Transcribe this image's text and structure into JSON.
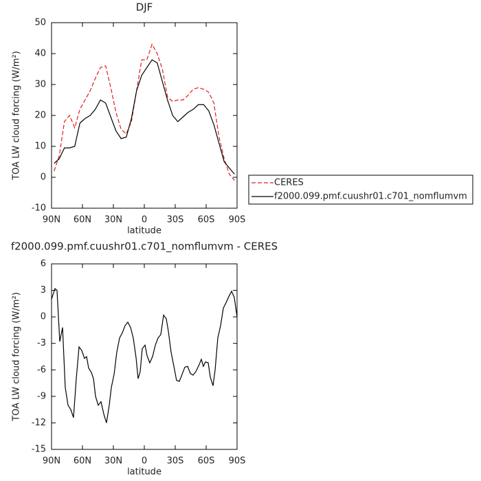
{
  "chart_data": [
    {
      "type": "line",
      "title": "DJF",
      "xlabel": "latitude",
      "ylabel": "TOA LW cloud forcing (W/m²)",
      "x": [
        87.5,
        82.5,
        77.5,
        72.5,
        67.5,
        62.5,
        57.5,
        52.5,
        47.5,
        42.5,
        37.5,
        32.5,
        27.5,
        22.5,
        17.5,
        12.5,
        7.5,
        2.5,
        -2.5,
        -7.5,
        -12.5,
        -17.5,
        -22.5,
        -27.5,
        -32.5,
        -37.5,
        -42.5,
        -47.5,
        -52.5,
        -57.5,
        -62.5,
        -67.5,
        -72.5,
        -77.5,
        -82.5,
        -87.5
      ],
      "series": [
        {
          "name": "CERES",
          "color": "#e41a1c",
          "line_style": "dashed",
          "values": [
            2,
            7,
            18,
            20,
            16,
            22,
            25,
            28,
            32,
            35.5,
            36,
            29,
            21,
            15.5,
            14,
            18,
            28,
            38,
            38,
            43,
            40,
            35,
            26,
            24.5,
            25,
            25,
            26.5,
            28.5,
            29,
            28.5,
            27.5,
            24,
            13,
            6,
            1,
            -1
          ]
        },
        {
          "name": "f2000.099.pmf.cuushr01.c701_nomflumvm",
          "color": "#000000",
          "line_style": "solid",
          "values": [
            4.5,
            6,
            9.5,
            9.5,
            10,
            17.5,
            19,
            20,
            22,
            25,
            24,
            19.5,
            15,
            12.5,
            13,
            19,
            28,
            33,
            35.5,
            38,
            37,
            31,
            25,
            20,
            18,
            19.5,
            21,
            22,
            23.5,
            23.5,
            21.5,
            17,
            11,
            5,
            3,
            1
          ]
        }
      ],
      "xlim": [
        90,
        -90
      ],
      "xticks": [
        {
          "value": 90,
          "label": "90N"
        },
        {
          "value": 60,
          "label": "60N"
        },
        {
          "value": 30,
          "label": "30N"
        },
        0,
        {
          "value": -30,
          "label": "30S"
        },
        {
          "value": -60,
          "label": "60S"
        },
        {
          "value": -90,
          "label": "90S"
        }
      ],
      "ylim": [
        -10,
        50
      ],
      "yticks": [
        -10,
        0,
        10,
        20,
        30,
        40,
        50
      ],
      "legend": "right"
    },
    {
      "type": "line",
      "title": "f2000.099.pmf.cuushr01.c701_nomflumvm - CERES",
      "xlabel": "latitude",
      "ylabel": "TOA LW cloud forcing (W/m²)",
      "x": [
        90,
        86.7,
        84.7,
        82,
        79.3,
        76.7,
        74,
        71.3,
        68.7,
        66,
        63.3,
        60.7,
        58,
        56,
        54,
        51.3,
        49.3,
        47.3,
        44.7,
        42,
        39.3,
        36.7,
        34,
        32,
        29.3,
        26.7,
        24,
        21.3,
        18.7,
        16,
        13.3,
        10.7,
        8,
        6,
        4,
        2,
        -0.7,
        -2.7,
        -5.3,
        -8,
        -10.7,
        -13.3,
        -16,
        -18.7,
        -21.3,
        -23.3,
        -26,
        -28.7,
        -31.3,
        -34,
        -36.7,
        -39.3,
        -42,
        -44.7,
        -47.3,
        -50,
        -53.3,
        -55.3,
        -57.3,
        -59.3,
        -62,
        -64,
        -66.7,
        -68.7,
        -71.3,
        -74,
        -76.7,
        -79.3,
        -82,
        -84.7,
        -87.3,
        -90
      ],
      "series": [
        {
          "color": "#000000",
          "line_style": "solid",
          "values": [
            2,
            3.2,
            3,
            -2.8,
            -1.2,
            -8,
            -10,
            -10.5,
            -11.4,
            -7,
            -3.4,
            -3.8,
            -4.7,
            -4.5,
            -5.8,
            -6.3,
            -7,
            -9,
            -10,
            -9.6,
            -11,
            -12,
            -10,
            -8,
            -6.5,
            -4,
            -2.4,
            -1.8,
            -1,
            -0.6,
            -1.2,
            -2.4,
            -4.6,
            -7,
            -6.2,
            -3.6,
            -3.2,
            -4.4,
            -5.2,
            -4.5,
            -3.2,
            -2.4,
            -2,
            0.2,
            -0.2,
            -1.6,
            -4,
            -5.6,
            -7.2,
            -7.3,
            -6.5,
            -5.7,
            -5.6,
            -6.4,
            -6.6,
            -6.2,
            -5.4,
            -4.8,
            -5.6,
            -5.1,
            -5.2,
            -6.8,
            -7.8,
            -6,
            -2.4,
            -1,
            1,
            1.6,
            2.3,
            2.9,
            2.2,
            0
          ]
        }
      ],
      "xlim": [
        90,
        -90
      ],
      "xticks": [
        {
          "value": 90,
          "label": "90N"
        },
        {
          "value": 60,
          "label": "60N"
        },
        {
          "value": 30,
          "label": "30N"
        },
        0,
        {
          "value": -30,
          "label": "30S"
        },
        {
          "value": -60,
          "label": "60S"
        },
        {
          "value": -90,
          "label": "90S"
        }
      ],
      "ylim": [
        -15,
        6
      ],
      "yticks": [
        -15,
        -12,
        -9,
        -6,
        -3,
        0,
        3,
        6
      ]
    }
  ]
}
